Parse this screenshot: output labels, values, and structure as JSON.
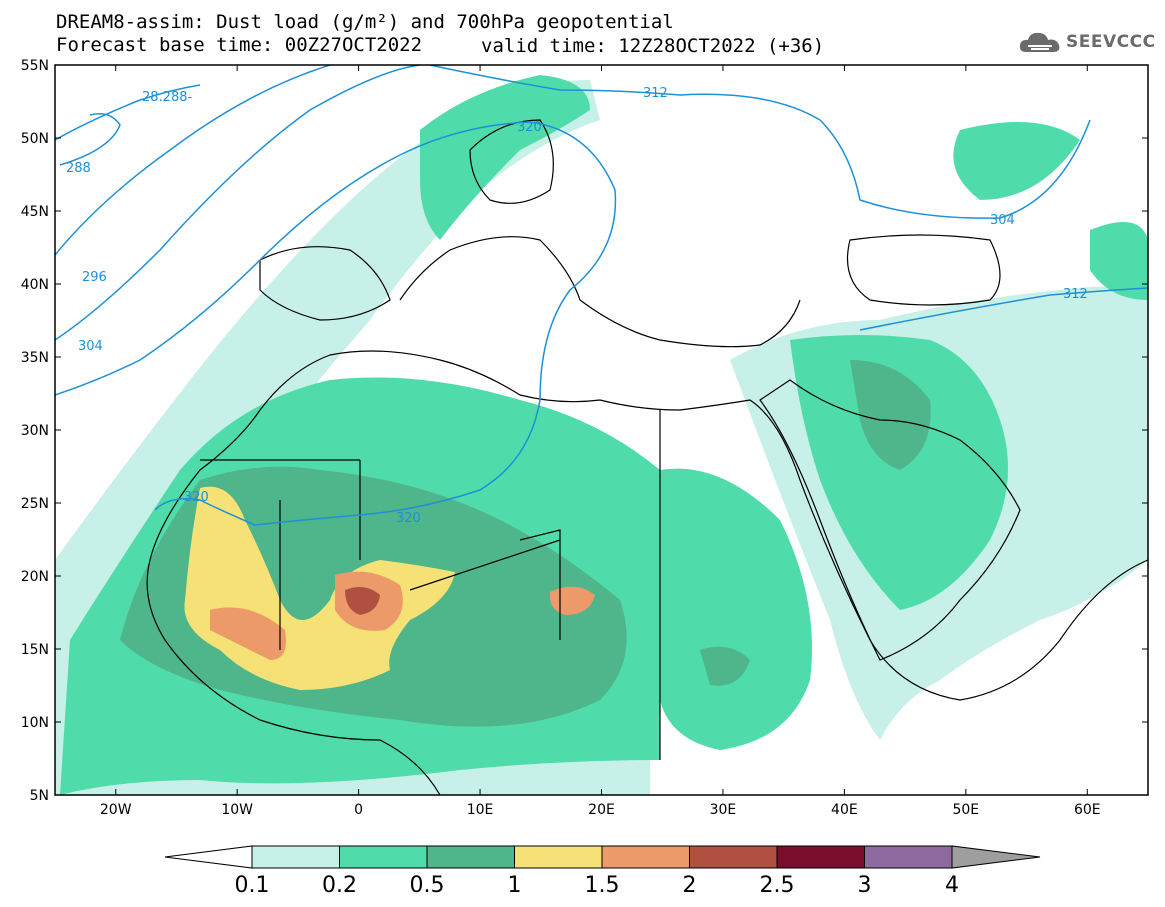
{
  "header": {
    "title_line1": "DREAM8-assim: Dust load (g/m²) and 700hPa geopotential",
    "base_time_label": "Forecast base time: 00Z27OCT2022",
    "valid_time_label": "valid time: 12Z28OCT2022 (+36)"
  },
  "logo": {
    "text": "SEEVCCC",
    "icon": "cloud-icon"
  },
  "map": {
    "lat_ticks": [
      "55N",
      "50N",
      "45N",
      "40N",
      "35N",
      "30N",
      "25N",
      "20N",
      "15N",
      "10N",
      "5N"
    ],
    "lon_ticks": [
      "20W",
      "10W",
      "0",
      "10E",
      "20E",
      "30E",
      "40E",
      "50E",
      "60E"
    ],
    "lon_range": [
      -25,
      65
    ],
    "lat_range": [
      5,
      55
    ],
    "contour_color": "#1e90d8",
    "contour_labels": [
      "28.288-",
      "288",
      "296",
      "304",
      "320",
      "320",
      "320",
      "312",
      "304",
      "312"
    ]
  },
  "colorbar": {
    "tick_labels": [
      "0.1",
      "0.2",
      "0.5",
      "1",
      "1.5",
      "2",
      "2.5",
      "3",
      "4"
    ],
    "colors": [
      "#c6f0e8",
      "#4fdcaa",
      "#4fb58a",
      "#f5e176",
      "#ec9a6a",
      "#b05040",
      "#7a0c2c",
      "#8e6aa0"
    ],
    "under_color": "#ffffff",
    "over_color": "#9e9e9e"
  }
}
